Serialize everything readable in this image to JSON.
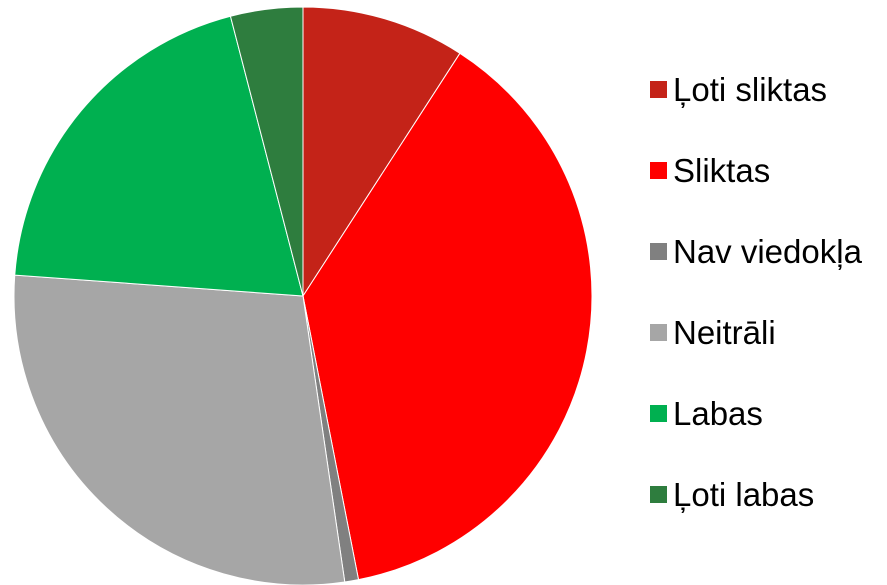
{
  "chart_data": {
    "type": "pie",
    "title": "",
    "categories": [
      "Ļoti sliktas",
      "Sliktas",
      "Nav viedokļa",
      "Neitrāli",
      "Labas",
      "Ļoti labas"
    ],
    "values": [
      9.5,
      39.3,
      0.8,
      29.6,
      20.6,
      4.2
    ],
    "unit": "%",
    "start_angle_deg": 0,
    "direction": "clockwise",
    "colors": [
      "#c42318",
      "#ff0000",
      "#808080",
      "#a6a6a6",
      "#00b050",
      "#2e7d3e"
    ],
    "legend": {
      "position": "right",
      "entries": [
        "Ļoti sliktas",
        "Sliktas",
        "Nav viedokļa",
        "Neitrāli",
        "Labas",
        "Ļoti labas"
      ]
    },
    "data_labels": false,
    "grid": false
  }
}
